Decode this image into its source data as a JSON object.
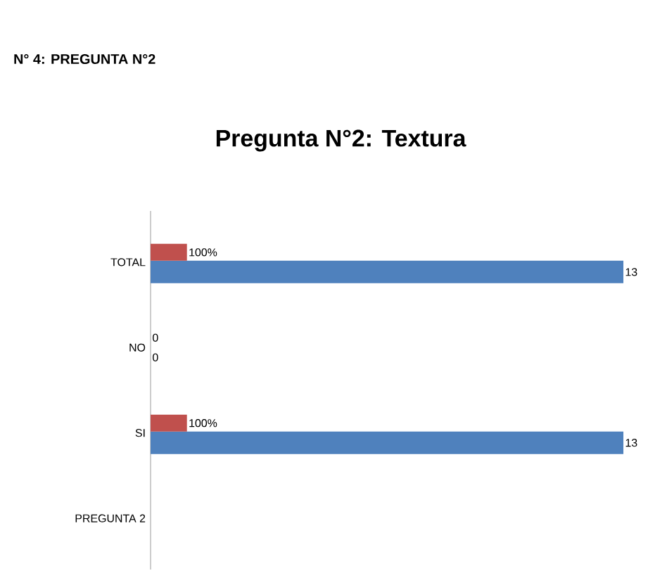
{
  "chart_data": {
    "type": "bar",
    "orientation": "horizontal",
    "title": "Pregunta N°2: Textura",
    "annotations": [
      "N° 4: PREGUNTA N°2"
    ],
    "categories": [
      "TOTAL",
      "NO",
      "SI",
      "PREGUNTA 2"
    ],
    "series": [
      {
        "color": "#4f81bd",
        "values": [
          13,
          0,
          13,
          null
        ],
        "value_labels": [
          "13",
          "0",
          "13",
          null
        ]
      },
      {
        "color": "#c0504d",
        "values": [
          1,
          0,
          1,
          null
        ],
        "value_labels": [
          "100%",
          "0",
          "100%",
          null
        ]
      }
    ],
    "tick_labels": "y"
  }
}
